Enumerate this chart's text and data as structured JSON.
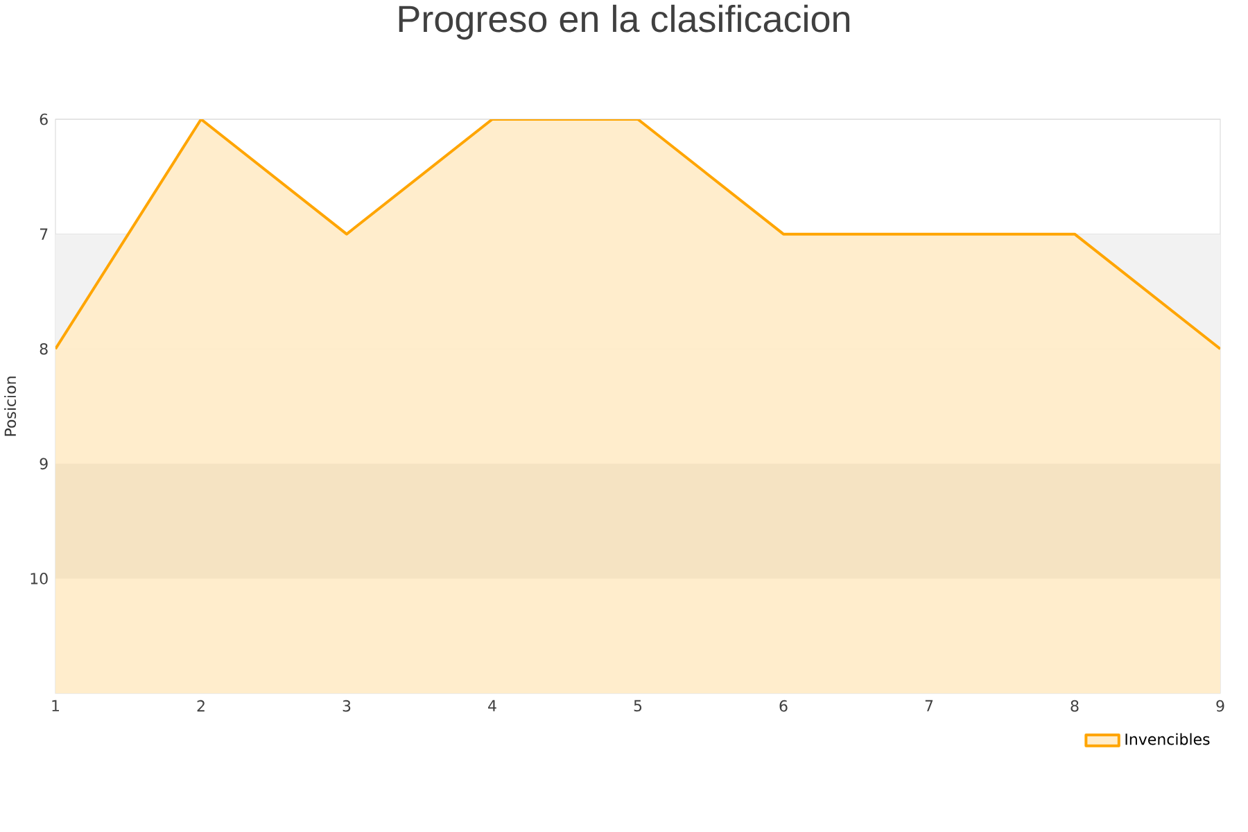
{
  "chart_data": {
    "type": "area",
    "title": "Progreso en la clasificacion",
    "ylabel": "Posicion",
    "x": [
      1,
      2,
      3,
      4,
      5,
      6,
      7,
      8,
      9
    ],
    "series": [
      {
        "name": "Invencibles",
        "color": "#ffa500",
        "values": [
          8,
          6,
          7,
          6,
          6,
          7,
          7,
          7,
          8
        ]
      }
    ],
    "xlim": [
      1,
      9
    ],
    "xticks": [
      1,
      2,
      3,
      4,
      5,
      6,
      7,
      8,
      9
    ],
    "ylim": [
      11,
      6
    ],
    "yticks": [
      6,
      7,
      8,
      9,
      10
    ],
    "bands": [
      {
        "axis": "y",
        "from": 7,
        "to": 8,
        "color": "#f2f2f2"
      },
      {
        "axis": "y",
        "from": 9,
        "to": 10
      }
    ],
    "grid": "y",
    "legend": "bottom right"
  }
}
